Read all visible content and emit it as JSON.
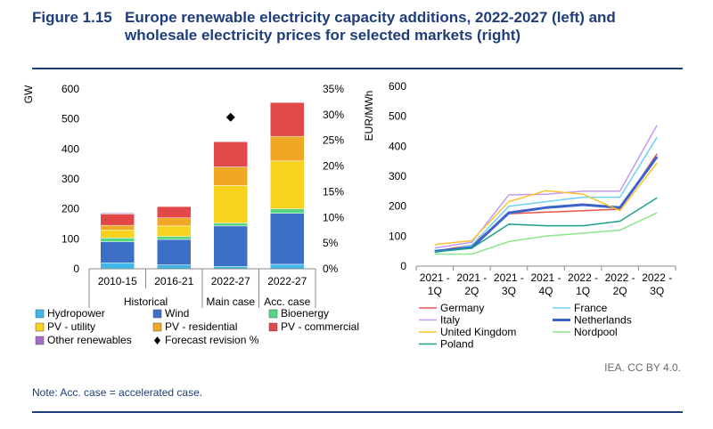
{
  "figure": {
    "number": "Figure 1.15",
    "title": "Europe renewable electricity capacity additions, 2022-2027 (left) and wholesale electricity prices for selected markets (right)",
    "credit": "IEA. CC BY 4.0.",
    "note": "Note: Acc. case = accelerated case."
  },
  "chart_data": [
    {
      "type": "bar",
      "stacked": true,
      "ylabel": "GW",
      "ylim": [
        0,
        600
      ],
      "yticks": [
        0,
        100,
        200,
        300,
        400,
        500,
        600
      ],
      "y2lim": [
        0,
        35
      ],
      "y2ticks": [
        "0%",
        "5%",
        "10%",
        "15%",
        "20%",
        "25%",
        "30%",
        "35%"
      ],
      "categories": [
        "2010-15",
        "2016-21",
        "2022-27",
        "2022-27"
      ],
      "groups": [
        {
          "label": "Historical",
          "span": [
            0,
            1
          ]
        },
        {
          "label": "Main case",
          "span": [
            2,
            2
          ]
        },
        {
          "label": "Acc. case",
          "span": [
            3,
            3
          ]
        }
      ],
      "series": [
        {
          "name": "Hydropower",
          "color": "#3fb8e8",
          "values": [
            20,
            13,
            8,
            15
          ]
        },
        {
          "name": "Wind",
          "color": "#3d6fc7",
          "values": [
            70,
            85,
            135,
            170
          ]
        },
        {
          "name": "Bioenergy",
          "color": "#56d682",
          "values": [
            13,
            10,
            10,
            15
          ]
        },
        {
          "name": "PV - utility",
          "color": "#f9d21e",
          "values": [
            27,
            35,
            125,
            160
          ]
        },
        {
          "name": "PV - residential",
          "color": "#f0a824",
          "values": [
            15,
            27,
            62,
            82
          ]
        },
        {
          "name": "PV - commercial",
          "color": "#e24848",
          "values": [
            38,
            38,
            84,
            113
          ]
        },
        {
          "name": "Other renewables",
          "color": "#a46cc8",
          "values": [
            3,
            1,
            1,
            1
          ]
        }
      ],
      "marker_series": {
        "name": "Forecast revision %",
        "color": "#000000",
        "category_index": 2,
        "value": 29.5
      }
    },
    {
      "type": "line",
      "ylabel": "EUR/MWh",
      "ylim": [
        0,
        600
      ],
      "yticks": [
        0,
        100,
        200,
        300,
        400,
        500,
        600
      ],
      "x": [
        [
          "2021 -",
          "1Q"
        ],
        [
          "2021 -",
          "2Q"
        ],
        [
          "2021 -",
          "3Q"
        ],
        [
          "2021 -",
          "4Q"
        ],
        [
          "2022 -",
          "1Q"
        ],
        [
          "2022 -",
          "2Q"
        ],
        [
          "2022 -",
          "3Q"
        ]
      ],
      "series": [
        {
          "name": "Germany",
          "color": "#e8544a",
          "width": 1.5,
          "values": [
            50,
            70,
            175,
            180,
            185,
            190,
            375
          ]
        },
        {
          "name": "France",
          "color": "#6fd0f5",
          "width": 1.5,
          "values": [
            45,
            70,
            200,
            215,
            230,
            230,
            430
          ]
        },
        {
          "name": "Italy",
          "color": "#c49af2",
          "width": 1.5,
          "values": [
            60,
            80,
            238,
            240,
            250,
            250,
            470
          ]
        },
        {
          "name": "Netherlands",
          "color": "#3b63c9",
          "width": 3,
          "values": [
            50,
            62,
            178,
            195,
            205,
            195,
            365
          ]
        },
        {
          "name": "United Kingdom",
          "color": "#f9c42c",
          "width": 1.5,
          "values": [
            72,
            85,
            215,
            252,
            240,
            185,
            345
          ]
        },
        {
          "name": "Nordpool",
          "color": "#8ce68a",
          "width": 1.5,
          "values": [
            40,
            40,
            82,
            100,
            110,
            120,
            178
          ]
        },
        {
          "name": "Poland",
          "color": "#1f9e8a",
          "width": 1.5,
          "values": [
            48,
            60,
            140,
            135,
            135,
            150,
            228
          ]
        }
      ]
    }
  ]
}
